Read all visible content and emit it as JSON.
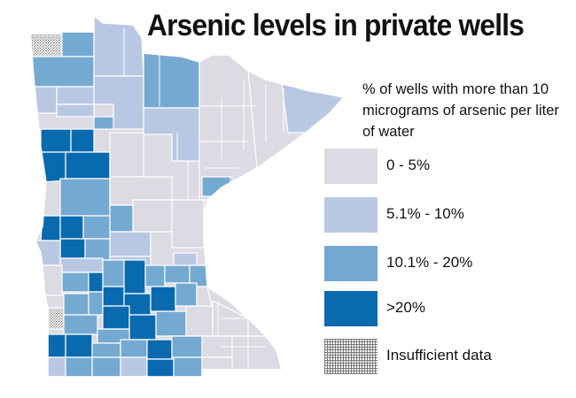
{
  "title": "Arsenic levels in private wells",
  "legend": {
    "heading": "% of wells with more than 10 micrograms of arsenic per liter of water",
    "items": [
      {
        "label": "0 - 5%",
        "color": "#dcdae2"
      },
      {
        "label": "5.1% - 10%",
        "color": "#b9c8e2"
      },
      {
        "label": "10.1% - 20%",
        "color": "#74a9d2"
      },
      {
        "label": ">20%",
        "color": "#0a6ab0"
      },
      {
        "label": "Insufficient data",
        "color": "hatched"
      }
    ]
  },
  "colors": {
    "low": "#dcdae2",
    "medium": "#b9c8e2",
    "high": "#74a9d2",
    "very_high": "#0a6ab0",
    "borders": "#ffffff"
  }
}
